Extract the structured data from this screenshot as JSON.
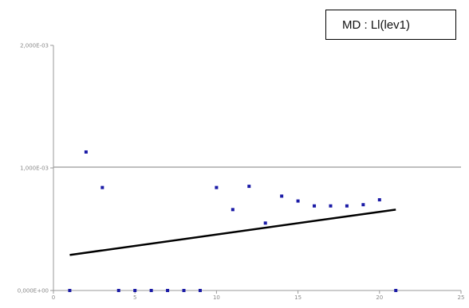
{
  "chart_data": {
    "type": "scatter",
    "title": "MD : Ll(lev1)",
    "xlabel": "",
    "ylabel": "",
    "xlim": [
      0,
      25
    ],
    "ylim": [
      0,
      0.002
    ],
    "x_ticks": [
      "0",
      "5",
      "10",
      "15",
      "20",
      "25"
    ],
    "y_ticks": [
      "0,000E+00",
      "1,000E-03",
      "2,000E-03"
    ],
    "grid": "horizontal at 1,000E-03",
    "points": [
      {
        "x": 1,
        "y": 0.0
      },
      {
        "x": 2,
        "y": 0.00113
      },
      {
        "x": 3,
        "y": 0.00084
      },
      {
        "x": 4,
        "y": 0.0
      },
      {
        "x": 5,
        "y": 0.0
      },
      {
        "x": 6,
        "y": 0.0
      },
      {
        "x": 7,
        "y": 0.0
      },
      {
        "x": 8,
        "y": 0.0
      },
      {
        "x": 9,
        "y": 0.0
      },
      {
        "x": 10,
        "y": 0.00084
      },
      {
        "x": 11,
        "y": 0.00066
      },
      {
        "x": 12,
        "y": 0.00085
      },
      {
        "x": 13,
        "y": 0.00055
      },
      {
        "x": 14,
        "y": 0.00077
      },
      {
        "x": 15,
        "y": 0.00073
      },
      {
        "x": 16,
        "y": 0.00069
      },
      {
        "x": 17,
        "y": 0.00069
      },
      {
        "x": 18,
        "y": 0.00069
      },
      {
        "x": 19,
        "y": 0.0007
      },
      {
        "x": 20,
        "y": 0.00074
      },
      {
        "x": 21,
        "y": 0.0
      }
    ],
    "trendline": {
      "x": [
        1,
        21
      ],
      "y": [
        0.00029,
        0.00066
      ]
    },
    "colors": {
      "points": "#1a1aa6",
      "trendline": "#000000",
      "grid": "#7f7f7f"
    }
  }
}
